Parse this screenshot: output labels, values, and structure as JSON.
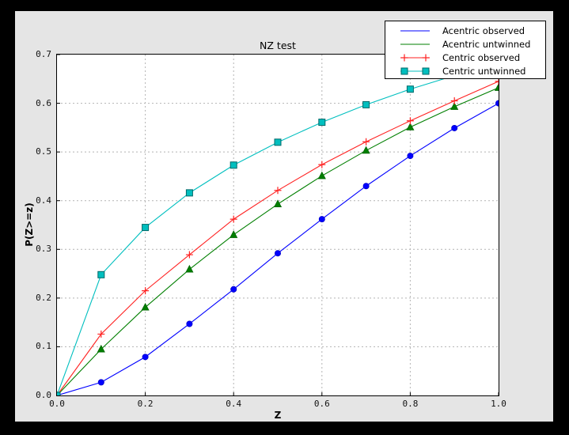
{
  "window": {
    "frame_color": "#000000",
    "figure_background": "#e5e5e5",
    "plot_background": "#ffffff",
    "grid_color": "#b4b4b4",
    "spine_color": "#000000"
  },
  "chart_data": {
    "type": "line",
    "title": "NZ test",
    "xlabel": "Z",
    "ylabel": "P(Z>=z)",
    "xlim": [
      0.0,
      1.0
    ],
    "ylim": [
      0.0,
      0.7
    ],
    "x_tick_labels": [
      "0.0",
      "0.2",
      "0.4",
      "0.6",
      "0.8",
      "1.0"
    ],
    "y_tick_labels": [
      "0.0",
      "0.1",
      "0.2",
      "0.3",
      "0.4",
      "0.5",
      "0.6",
      "0.7"
    ],
    "grid": true,
    "grid_style": "dashed",
    "legend_position": "upper right",
    "x": [
      0.0,
      0.1,
      0.2,
      0.3,
      0.4,
      0.5,
      0.6,
      0.7,
      0.8,
      0.9,
      1.0
    ],
    "series": [
      {
        "name": "Acentric observed",
        "color": "#0000ff",
        "marker": "circle",
        "marker_edge": "#0000cc",
        "values": [
          0.0,
          0.027,
          0.079,
          0.147,
          0.218,
          0.292,
          0.362,
          0.43,
          0.492,
          0.549,
          0.6
        ]
      },
      {
        "name": "Acentric untwinned",
        "color": "#007f00",
        "marker": "triangle",
        "marker_edge": "#006600",
        "values": [
          0.0,
          0.095,
          0.181,
          0.259,
          0.33,
          0.393,
          0.451,
          0.503,
          0.551,
          0.593,
          0.632
        ]
      },
      {
        "name": "Centric observed",
        "color": "#ff2222",
        "marker": "plus",
        "marker_edge": "#ff2222",
        "values": [
          0.0,
          0.126,
          0.215,
          0.289,
          0.362,
          0.421,
          0.474,
          0.521,
          0.564,
          0.605,
          0.645
        ]
      },
      {
        "name": "Centric untwinned",
        "color": "#00bfbf",
        "marker": "square",
        "marker_edge": "#006868",
        "values": [
          0.0,
          0.248,
          0.345,
          0.416,
          0.473,
          0.52,
          0.561,
          0.597,
          0.629,
          0.657,
          0.683
        ]
      }
    ]
  }
}
